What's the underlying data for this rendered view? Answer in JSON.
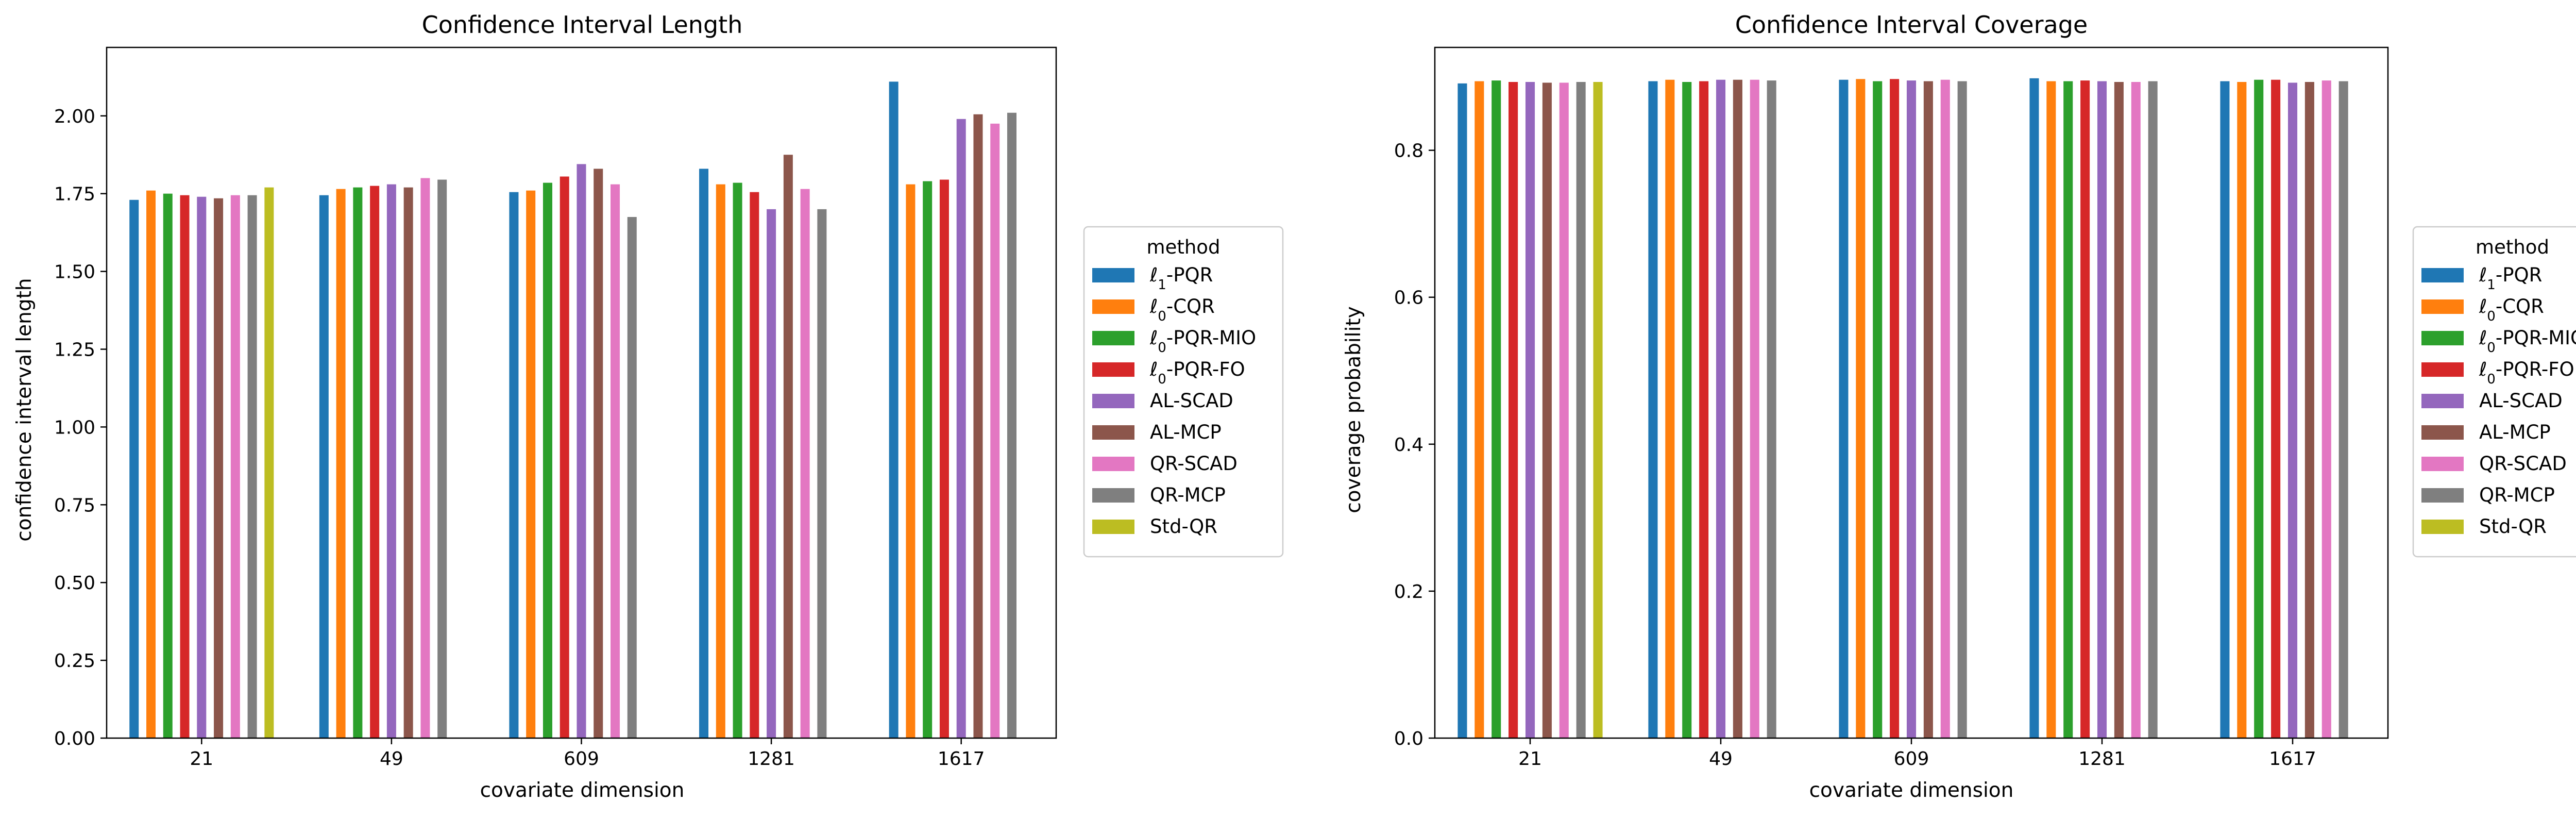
{
  "methods": [
    "ℓ1-PQR",
    "ℓ0-CQR",
    "ℓ0-PQR-MIO",
    "ℓ0-PQR-FO",
    "AL-SCAD",
    "AL-MCP",
    "QR-SCAD",
    "QR-MCP",
    "Std-QR"
  ],
  "method_colors": [
    "#1f77b4",
    "#ff7f0e",
    "#2ca02c",
    "#d62728",
    "#9467bd",
    "#8c564b",
    "#e377c2",
    "#7f7f7f",
    "#bcbd22"
  ],
  "chart_data": [
    {
      "type": "bar",
      "title": "Confidence Interval Length",
      "xlabel": "covariate dimension",
      "ylabel": "confidence interval length",
      "legend_title": "method",
      "legend_position": "right-outside",
      "categories": [
        "21",
        "49",
        "609",
        "1281",
        "1617"
      ],
      "ylim": [
        0,
        2.22
      ],
      "yticks": [
        "0.00",
        "0.25",
        "0.50",
        "0.75",
        "1.00",
        "1.25",
        "1.50",
        "1.75",
        "2.00"
      ],
      "series": [
        {
          "name": "ℓ1-PQR",
          "values": [
            1.73,
            1.745,
            1.755,
            1.83,
            2.11
          ]
        },
        {
          "name": "ℓ0-CQR",
          "values": [
            1.76,
            1.765,
            1.76,
            1.78,
            1.78
          ]
        },
        {
          "name": "ℓ0-PQR-MIO",
          "values": [
            1.75,
            1.77,
            1.785,
            1.785,
            1.79
          ]
        },
        {
          "name": "ℓ0-PQR-FO",
          "values": [
            1.745,
            1.775,
            1.805,
            1.755,
            1.795
          ]
        },
        {
          "name": "AL-SCAD",
          "values": [
            1.74,
            1.78,
            1.845,
            1.7,
            1.99
          ]
        },
        {
          "name": "AL-MCP",
          "values": [
            1.735,
            1.77,
            1.83,
            1.875,
            2.005
          ]
        },
        {
          "name": "QR-SCAD",
          "values": [
            1.745,
            1.8,
            1.78,
            1.765,
            1.975
          ]
        },
        {
          "name": "QR-MCP",
          "values": [
            1.745,
            1.795,
            1.675,
            1.7,
            2.01
          ]
        },
        {
          "name": "Std-QR",
          "values": [
            1.77,
            null,
            null,
            null,
            null
          ]
        }
      ]
    },
    {
      "type": "bar",
      "title": "Confidence Interval Coverage",
      "xlabel": "covariate dimension",
      "ylabel": "coverage probability",
      "legend_title": "method",
      "legend_position": "right-outside",
      "categories": [
        "21",
        "49",
        "609",
        "1281",
        "1617"
      ],
      "ylim": [
        0,
        0.94
      ],
      "yticks": [
        "0.0",
        "0.2",
        "0.4",
        "0.6",
        "0.8"
      ],
      "series": [
        {
          "name": "ℓ1-PQR",
          "values": [
            0.891,
            0.894,
            0.896,
            0.898,
            0.894
          ]
        },
        {
          "name": "ℓ0-CQR",
          "values": [
            0.894,
            0.896,
            0.897,
            0.894,
            0.893
          ]
        },
        {
          "name": "ℓ0-PQR-MIO",
          "values": [
            0.895,
            0.893,
            0.894,
            0.894,
            0.896
          ]
        },
        {
          "name": "ℓ0-PQR-FO",
          "values": [
            0.893,
            0.894,
            0.897,
            0.895,
            0.896
          ]
        },
        {
          "name": "AL-SCAD",
          "values": [
            0.893,
            0.896,
            0.895,
            0.894,
            0.892
          ]
        },
        {
          "name": "AL-MCP",
          "values": [
            0.892,
            0.896,
            0.894,
            0.893,
            0.893
          ]
        },
        {
          "name": "QR-SCAD",
          "values": [
            0.892,
            0.896,
            0.896,
            0.893,
            0.895
          ]
        },
        {
          "name": "QR-MCP",
          "values": [
            0.893,
            0.895,
            0.894,
            0.894,
            0.894
          ]
        },
        {
          "name": "Std-QR",
          "values": [
            0.893,
            null,
            null,
            null,
            null
          ]
        }
      ]
    }
  ]
}
